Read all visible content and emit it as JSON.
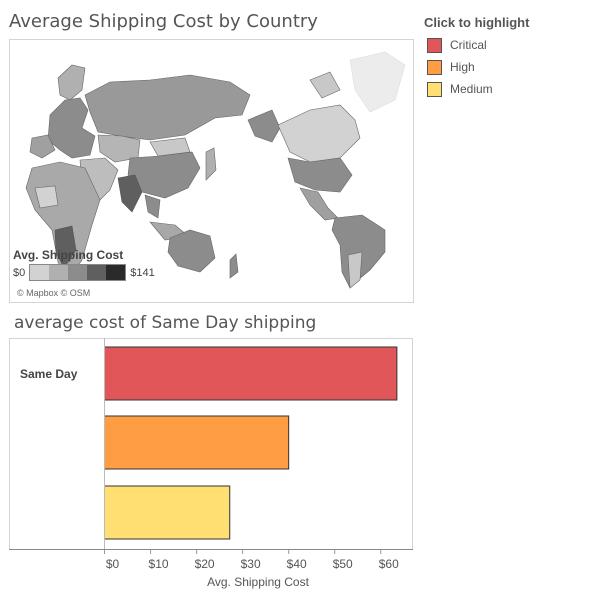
{
  "map": {
    "title": "Average Shipping Cost by Country",
    "legend_title": "Avg. Shipping Cost",
    "legend_min": "$0",
    "legend_max": "$141",
    "ramp_colors": [
      "#d2d2d2",
      "#b0b0b0",
      "#8c8c8c",
      "#5f5f5f",
      "#2a2a2a"
    ],
    "attribution": "© Mapbox © OSM"
  },
  "legend": {
    "title": "Click to highlight",
    "items": [
      {
        "label": "Critical",
        "color": "#e15759"
      },
      {
        "label": "High",
        "color": "#ff9d45"
      },
      {
        "label": "Medium",
        "color": "#ffdf71"
      }
    ]
  },
  "bar": {
    "title": "average cost of Same Day shipping"
  },
  "chart_data": {
    "type": "bar",
    "orientation": "horizontal",
    "category_label": "Same Day",
    "series": [
      {
        "name": "Critical",
        "value": 63.5,
        "color": "#e15759"
      },
      {
        "name": "High",
        "value": 40,
        "color": "#ff9d45"
      },
      {
        "name": "Medium",
        "value": 27.2,
        "color": "#ffdf71"
      }
    ],
    "xlabel": "Avg. Shipping Cost",
    "xlim": [
      0,
      67
    ],
    "ticks": [
      0,
      10,
      20,
      30,
      40,
      50,
      60
    ],
    "tick_labels": [
      "$0",
      "$10",
      "$20",
      "$30",
      "$40",
      "$50",
      "$60"
    ]
  }
}
